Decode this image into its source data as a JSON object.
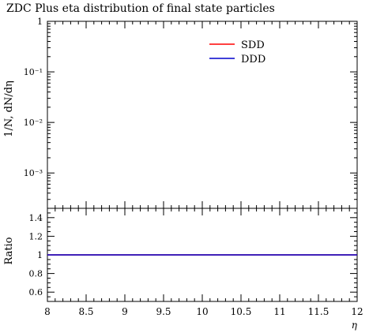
{
  "chart_data": {
    "type": "line",
    "title": "ZDC Plus eta distribution of final state particles",
    "xlabel": "η",
    "ylabel_main": "1/N, dN/dη",
    "ylabel_ratio": "Ratio",
    "xlim": [
      8,
      12
    ],
    "main": {
      "yscale": "log",
      "ylim": [
        0.0002,
        1
      ],
      "yticks": [
        {
          "value": 1,
          "label": "1"
        },
        {
          "value": 0.1,
          "label": "10⁻¹"
        },
        {
          "value": 0.01,
          "label": "10⁻²"
        },
        {
          "value": 0.001,
          "label": "10⁻³"
        }
      ]
    },
    "ratio": {
      "ylim": [
        0.5,
        1.5
      ],
      "yticks": [
        {
          "value": 1.4,
          "label": "1.4"
        },
        {
          "value": 1.2,
          "label": "1.2"
        },
        {
          "value": 1.0,
          "label": "1"
        },
        {
          "value": 0.8,
          "label": "0.8"
        },
        {
          "value": 0.6,
          "label": "0.6"
        }
      ]
    },
    "xticks": [
      {
        "value": 8,
        "label": "8"
      },
      {
        "value": 8.5,
        "label": "8.5"
      },
      {
        "value": 9,
        "label": "9"
      },
      {
        "value": 9.5,
        "label": "9.5"
      },
      {
        "value": 10,
        "label": "10"
      },
      {
        "value": 10.5,
        "label": "10.5"
      },
      {
        "value": 11,
        "label": "11"
      },
      {
        "value": 11.5,
        "label": "11.5"
      },
      {
        "value": 12,
        "label": "12"
      }
    ],
    "series": [
      {
        "name": "SDD",
        "color": "#ff0000",
        "main_values": [],
        "ratio": {
          "x": [
            8,
            12
          ],
          "y": [
            1,
            1
          ]
        }
      },
      {
        "name": "DDD",
        "color": "#0000cc",
        "main_values": [],
        "ratio": {
          "x": [
            8,
            12
          ],
          "y": [
            1,
            1
          ]
        }
      }
    ],
    "legend_position": "top-right",
    "grid": false
  }
}
